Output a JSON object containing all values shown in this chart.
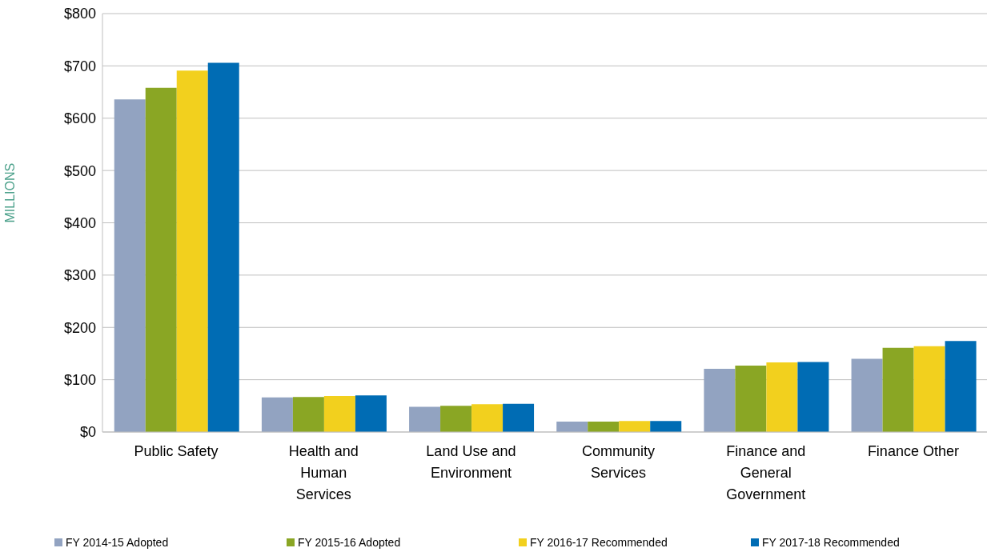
{
  "chart_data": {
    "type": "bar",
    "ylabel": "MILLIONS",
    "categories": [
      "Public Safety",
      "Health and Human Services",
      "Land Use and Environment",
      "Community Services",
      "Finance and General Government",
      "Finance Other"
    ],
    "series": [
      {
        "name": "FY 2014-15 Adopted",
        "color": "#92a3c1",
        "values": [
          636,
          66,
          48,
          20,
          121,
          140
        ]
      },
      {
        "name": "FY 2015-16 Adopted",
        "color": "#8aa624",
        "values": [
          658,
          67,
          50,
          20,
          127,
          161
        ]
      },
      {
        "name": "FY 2016-17 Recommended",
        "color": "#f2d01e",
        "values": [
          691,
          69,
          53,
          21,
          133,
          164
        ]
      },
      {
        "name": "FY 2017-18 Recommended",
        "color": "#006cb4",
        "values": [
          706,
          70,
          54,
          21,
          134,
          174
        ]
      }
    ],
    "ylim": [
      0,
      800
    ],
    "yticks": [
      {
        "value": 0,
        "label": "$0"
      },
      {
        "value": 100,
        "label": "$100"
      },
      {
        "value": 200,
        "label": "$200"
      },
      {
        "value": 300,
        "label": "$300"
      },
      {
        "value": 400,
        "label": "$400"
      },
      {
        "value": 500,
        "label": "$500"
      },
      {
        "value": 600,
        "label": "$600"
      },
      {
        "value": 700,
        "label": "$700"
      },
      {
        "value": 800,
        "label": "$800"
      }
    ],
    "grid": "y",
    "legend": "bottom"
  }
}
